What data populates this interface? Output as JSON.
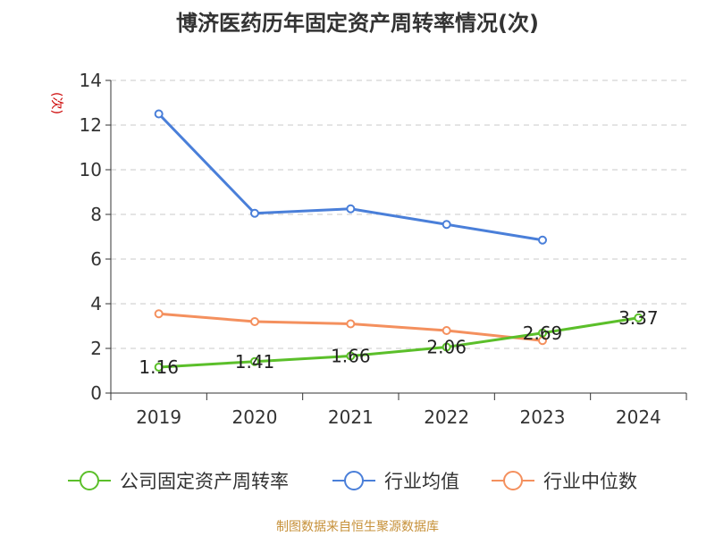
{
  "chart_data": {
    "type": "line",
    "title": "博济医药历年固定资产周转率情况(次)",
    "ylabel": "(次)",
    "xlabel": "",
    "categories": [
      "2019",
      "2020",
      "2021",
      "2022",
      "2023",
      "2024"
    ],
    "ylim": [
      0,
      14
    ],
    "yticks": [
      0,
      2,
      4,
      6,
      8,
      10,
      12,
      14
    ],
    "grid": true,
    "legend_position": "bottom",
    "series": [
      {
        "name": "公司固定资产周转率",
        "color": "#5bbf2a",
        "values": [
          1.16,
          1.41,
          1.66,
          2.06,
          2.69,
          3.37
        ],
        "labels": [
          "1.16",
          "1.41",
          "1.66",
          "2.06",
          "2.69",
          "3.37"
        ]
      },
      {
        "name": "行业均值",
        "color": "#4a7fd9",
        "values": [
          12.5,
          8.05,
          8.25,
          7.55,
          6.85,
          null
        ]
      },
      {
        "name": "行业中位数",
        "color": "#f4905e",
        "values": [
          3.55,
          3.2,
          3.1,
          2.8,
          2.35,
          null
        ]
      }
    ]
  },
  "source": "制图数据来自恒生聚源数据库"
}
